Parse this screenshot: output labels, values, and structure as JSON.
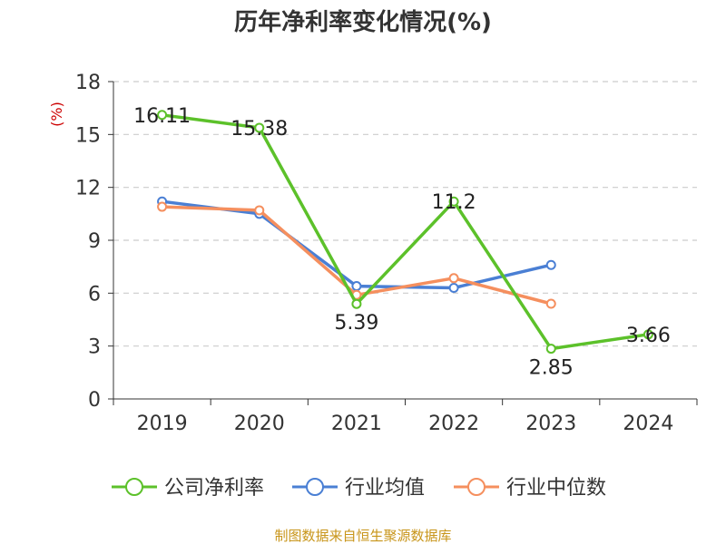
{
  "chart_data": {
    "type": "line",
    "title": "历年净利率变化情况(%)",
    "ylabel": "(%)",
    "categories": [
      "2019",
      "2020",
      "2021",
      "2022",
      "2023",
      "2024"
    ],
    "ylim": [
      0,
      18
    ],
    "yticks": [
      "0",
      "3",
      "6",
      "9",
      "12",
      "15",
      "18"
    ],
    "grid": "horizontal-dashed",
    "legend_position": "bottom",
    "series": [
      {
        "name": "公司净利率",
        "color": "#5cc12a",
        "values": [
          16.11,
          15.38,
          5.39,
          11.2,
          2.85,
          3.66
        ],
        "labels": [
          "16.11",
          "15.38",
          "5.39",
          "11.2",
          "2.85",
          "3.66"
        ]
      },
      {
        "name": "行业均值",
        "color": "#4a7fd4",
        "values": [
          11.2,
          10.5,
          6.4,
          6.3,
          7.6,
          null
        ]
      },
      {
        "name": "行业中位数",
        "color": "#f58f5e",
        "values": [
          10.9,
          10.7,
          5.9,
          6.85,
          5.4,
          null
        ]
      }
    ]
  },
  "source": "制图数据来自恒生聚源数据库"
}
